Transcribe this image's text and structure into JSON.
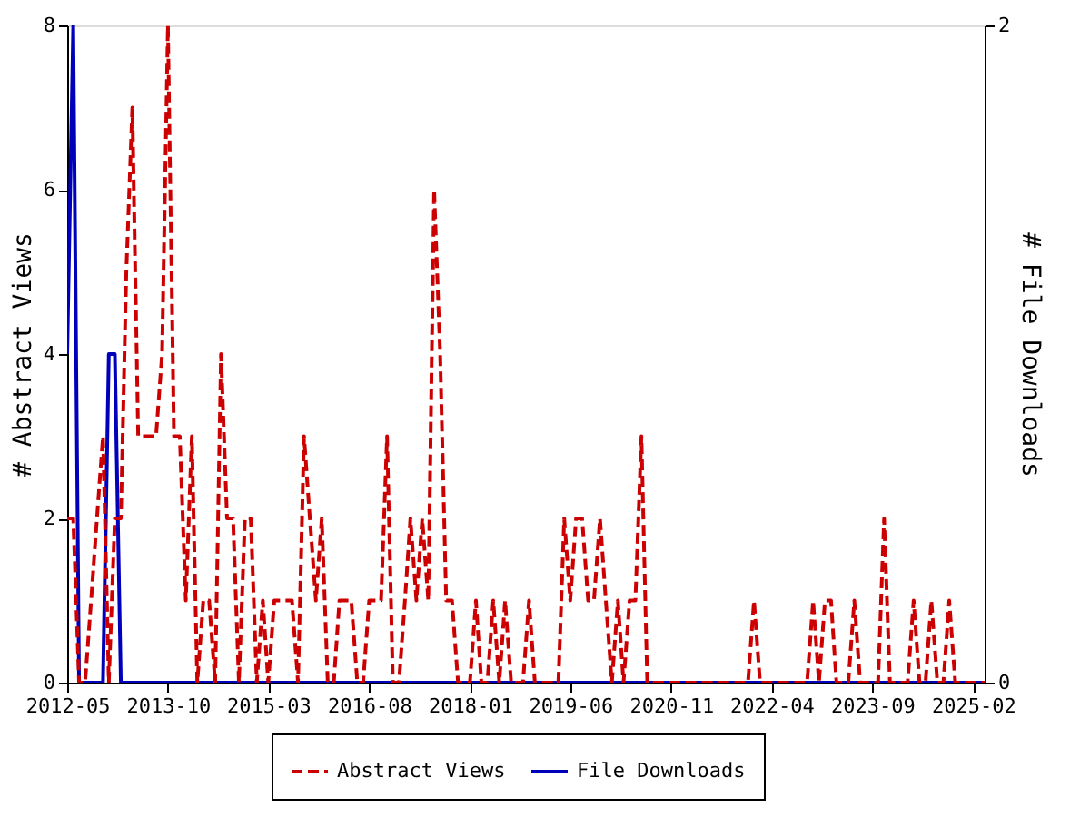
{
  "chart_data": {
    "type": "line",
    "x": [
      "2012-05",
      "2012-06",
      "2012-07",
      "2012-08",
      "2012-09",
      "2012-10",
      "2012-11",
      "2012-12",
      "2013-01",
      "2013-02",
      "2013-03",
      "2013-04",
      "2013-05",
      "2013-06",
      "2013-07",
      "2013-08",
      "2013-09",
      "2013-10",
      "2013-11",
      "2013-12",
      "2014-01",
      "2014-02",
      "2014-03",
      "2014-04",
      "2014-05",
      "2014-06",
      "2014-07",
      "2014-08",
      "2014-09",
      "2014-10",
      "2014-11",
      "2014-12",
      "2015-01",
      "2015-02",
      "2015-03",
      "2015-04",
      "2015-05",
      "2015-06",
      "2015-07",
      "2015-08",
      "2015-09",
      "2015-10",
      "2015-11",
      "2015-12",
      "2016-01",
      "2016-02",
      "2016-03",
      "2016-04",
      "2016-05",
      "2016-06",
      "2016-07",
      "2016-08",
      "2016-09",
      "2016-10",
      "2016-11",
      "2016-12",
      "2017-01",
      "2017-02",
      "2017-03",
      "2017-04",
      "2017-05",
      "2017-06",
      "2017-07",
      "2017-08",
      "2017-09",
      "2017-10",
      "2017-11",
      "2017-12",
      "2018-01",
      "2018-02",
      "2018-03",
      "2018-04",
      "2018-05",
      "2018-06",
      "2018-07",
      "2018-08",
      "2018-09",
      "2018-10",
      "2018-11",
      "2018-12",
      "2019-01",
      "2019-02",
      "2019-03",
      "2019-04",
      "2019-05",
      "2019-06",
      "2019-07",
      "2019-08",
      "2019-09",
      "2019-10",
      "2019-11",
      "2019-12",
      "2020-01",
      "2020-02",
      "2020-03",
      "2020-04",
      "2020-05",
      "2020-06",
      "2020-07",
      "2020-08",
      "2020-09",
      "2020-10",
      "2020-11",
      "2020-12",
      "2021-01",
      "2021-02",
      "2021-03",
      "2021-04",
      "2021-05",
      "2021-06",
      "2021-07",
      "2021-08",
      "2021-09",
      "2021-10",
      "2021-11",
      "2021-12",
      "2022-01",
      "2022-02",
      "2022-03",
      "2022-04",
      "2022-05",
      "2022-06",
      "2022-07",
      "2022-08",
      "2022-09",
      "2022-10",
      "2022-11",
      "2022-12",
      "2023-01",
      "2023-02",
      "2023-03",
      "2023-04",
      "2023-05",
      "2023-06",
      "2023-07",
      "2023-08",
      "2023-09",
      "2023-10",
      "2023-11",
      "2023-12",
      "2024-01",
      "2024-02",
      "2024-03",
      "2024-04",
      "2024-05",
      "2024-06",
      "2024-07",
      "2024-08",
      "2024-09",
      "2024-10",
      "2024-11",
      "2024-12",
      "2025-01",
      "2025-02",
      "2025-03",
      "2025-04"
    ],
    "ylabel": "# Abstract Views",
    "y2label": "# File Downloads",
    "series": [
      {
        "name": "Abstract Views",
        "color": "#cc0000",
        "line_style": "dashed",
        "values": [
          2,
          2,
          0,
          0,
          1,
          2,
          3,
          0,
          2,
          2,
          5,
          7,
          3,
          3,
          3,
          3,
          4,
          8,
          3,
          3,
          1,
          3,
          0,
          1,
          1,
          0,
          4,
          2,
          2,
          0,
          2,
          2,
          0,
          1,
          0,
          1,
          1,
          1,
          1,
          0,
          3,
          2,
          1,
          2,
          0,
          0,
          1,
          1,
          1,
          0,
          0,
          1,
          1,
          1,
          3,
          0,
          0,
          1,
          2,
          1,
          2,
          1,
          6,
          4,
          1,
          1,
          0,
          0,
          0,
          1,
          0,
          0,
          1,
          0,
          1,
          0,
          0,
          0,
          1,
          0,
          0,
          0,
          0,
          0,
          2,
          1,
          2,
          2,
          1,
          1,
          2,
          1,
          0,
          1,
          0,
          1,
          1,
          3,
          0,
          0,
          0,
          0,
          0,
          0,
          0,
          0,
          0,
          0,
          0,
          0,
          0,
          0,
          0,
          0,
          0,
          0,
          1,
          0,
          0,
          0,
          0,
          0,
          0,
          0,
          0,
          0,
          1,
          0,
          1,
          1,
          0,
          0,
          0,
          1,
          0,
          0,
          0,
          0,
          2,
          0,
          0,
          0,
          0,
          1,
          0,
          0,
          1,
          0,
          0,
          1,
          0,
          0,
          0,
          0,
          0,
          0
        ]
      },
      {
        "name": "File Downloads",
        "color": "#0000bb",
        "line_style": "solid",
        "axis": "y2",
        "values": [
          1,
          2,
          0,
          0,
          0,
          0,
          0,
          1,
          1,
          0,
          0,
          0,
          0,
          0,
          0,
          0,
          0,
          0,
          0,
          0,
          0,
          0,
          0,
          0,
          0,
          0,
          0,
          0,
          0,
          0,
          0,
          0,
          0,
          0,
          0,
          0,
          0,
          0,
          0,
          0,
          0,
          0,
          0,
          0,
          0,
          0,
          0,
          0,
          0,
          0,
          0,
          0,
          0,
          0,
          0,
          0,
          0,
          0,
          0,
          0,
          0,
          0,
          0,
          0,
          0,
          0,
          0,
          0,
          0,
          0,
          0,
          0,
          0,
          0,
          0,
          0,
          0,
          0,
          0,
          0,
          0,
          0,
          0,
          0,
          0,
          0,
          0,
          0,
          0,
          0,
          0,
          0,
          0,
          0,
          0,
          0,
          0,
          0,
          0,
          0,
          0,
          0,
          0,
          0,
          0,
          0,
          0,
          0,
          0,
          0,
          0,
          0,
          0,
          0,
          0,
          0,
          0,
          0,
          0,
          0,
          0,
          0,
          0,
          0,
          0,
          0,
          0,
          0,
          0,
          0,
          0,
          0,
          0,
          0,
          0,
          0,
          0,
          0,
          0,
          0,
          0,
          0,
          0,
          0,
          0,
          0,
          0,
          0,
          0,
          0,
          0,
          0,
          0,
          0,
          0,
          0
        ]
      }
    ],
    "xlim": [
      "2012-05",
      "2025-04"
    ],
    "xticks": [
      "2012-05",
      "2013-10",
      "2015-03",
      "2016-08",
      "2018-01",
      "2019-06",
      "2020-11",
      "2022-04",
      "2023-09",
      "2025-02"
    ],
    "ylim": [
      0,
      8
    ],
    "yticks": [
      0,
      2,
      4,
      6,
      8
    ],
    "y2lim": [
      0,
      2
    ],
    "y2ticks": [
      0,
      2
    ],
    "grid": false,
    "legend": "bottom"
  }
}
